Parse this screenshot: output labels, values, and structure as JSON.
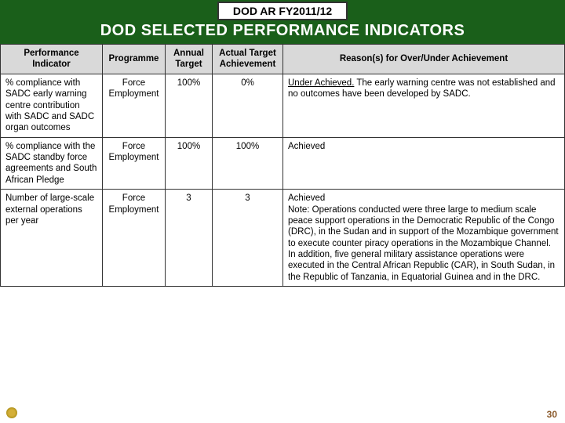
{
  "header": {
    "box_title": "DOD AR FY2011/12",
    "main_title": "DOD SELECTED PERFORMANCE INDICATORS"
  },
  "table": {
    "columns": [
      "Performance Indicator",
      "Programme",
      "Annual Target",
      "Actual Target Achievement",
      "Reason(s) for Over/Under Achievement"
    ],
    "rows": [
      {
        "indicator": "% compliance with SADC early warning centre contribution with SADC and SADC organ outcomes",
        "programme": "Force Employment",
        "annual_target": "100%",
        "actual": "0%",
        "reason_prefix": "Under Achieved.",
        "reason_body": " The early warning centre was not established and no outcomes have been developed by SADC."
      },
      {
        "indicator": "% compliance with the SADC standby force agreements and South African Pledge",
        "programme": "Force Employment",
        "annual_target": "100%",
        "actual": "100%",
        "reason_prefix": "",
        "reason_body": "Achieved"
      },
      {
        "indicator": "Number of large-scale external operations per year",
        "programme": "Force Employment",
        "annual_target": "3",
        "actual": "3",
        "reason_prefix": "",
        "reason_body": "Achieved\nNote: Operations conducted were three large to medium scale peace support operations in the Democratic Republic of the Congo (DRC), in the Sudan and in support of the Mozambique government to execute counter piracy operations in the Mozambique Channel. In addition, five general military assistance operations were executed in the Central African Republic (CAR), in South Sudan, in the Republic of Tanzania, in Equatorial Guinea and in the DRC."
      }
    ]
  },
  "footer": {
    "page_number": "30",
    "logo_text": ""
  },
  "colors": {
    "header_bg": "#1a5f1a",
    "th_bg": "#d9d9d9",
    "page_num": "#8b5a2b"
  }
}
